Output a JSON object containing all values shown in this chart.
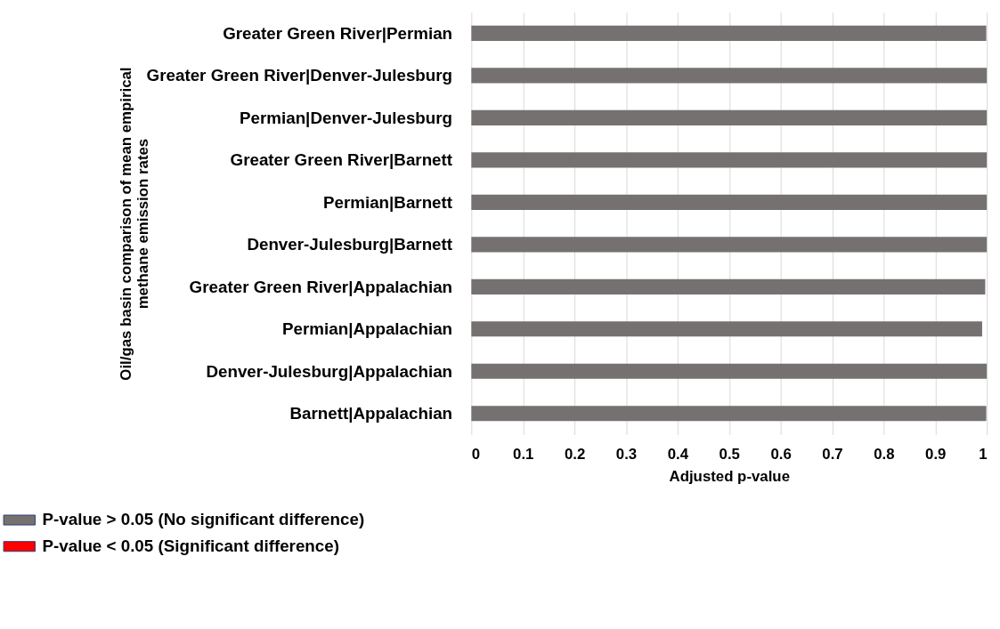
{
  "chart_data": {
    "type": "bar",
    "orientation": "horizontal",
    "xlabel": "Adjusted p-value",
    "ylabel": "Oil/gas basin comparison of mean empirical\nmethane emission rates",
    "categories": [
      "Greater Green River|Permian",
      "Greater Green River|Denver-Julesburg",
      "Permian|Denver-Julesburg",
      "Greater Green River|Barnett",
      "Permian|Barnett",
      "Denver-Julesburg|Barnett",
      "Greater Green River|Appalachian",
      "Permian|Appalachian",
      "Denver-Julesburg|Appalachian",
      "Barnett|Appalachian"
    ],
    "series": [
      {
        "name": "P-value > 0.05 (No significant difference)",
        "color": "#767171",
        "values": [
          0.999,
          1,
          1,
          1,
          1,
          1,
          0.997,
          0.991,
          1,
          0.999
        ]
      },
      {
        "name": "P-value < 0.05 (Significant difference)",
        "color": "#ff0000",
        "values": [
          null,
          null,
          null,
          null,
          null,
          null,
          null,
          null,
          null,
          null
        ]
      }
    ],
    "xlim": [
      0,
      1
    ],
    "xticks": [
      0,
      0.1,
      0.2,
      0.3,
      0.4,
      0.5,
      0.6,
      0.7,
      0.8,
      0.9,
      1
    ],
    "grid": "x",
    "legend": "bottom left"
  }
}
